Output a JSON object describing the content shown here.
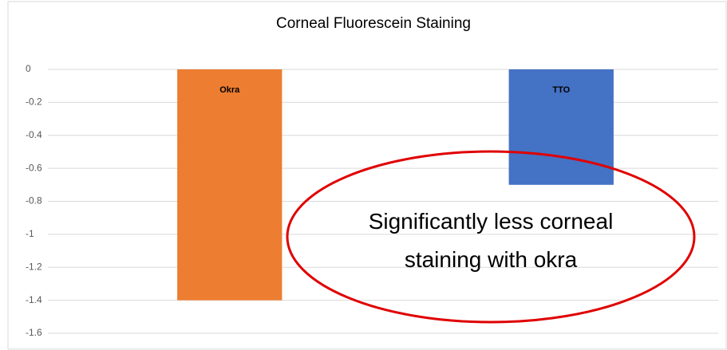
{
  "chart_data": {
    "type": "bar",
    "title": "Corneal Fluorescein Staining",
    "categories": [
      "Okra",
      "TTO"
    ],
    "values": [
      -1.4,
      -0.7
    ],
    "colors": [
      "#ed7d31",
      "#4472c4"
    ],
    "ylim": [
      -1.6,
      0
    ],
    "yticks": [
      0,
      -0.2,
      -0.4,
      -0.6,
      -0.8,
      -1,
      -1.2,
      -1.4,
      -1.6
    ],
    "grid": true,
    "annotation": "Significantly less corneal staining with okra"
  }
}
